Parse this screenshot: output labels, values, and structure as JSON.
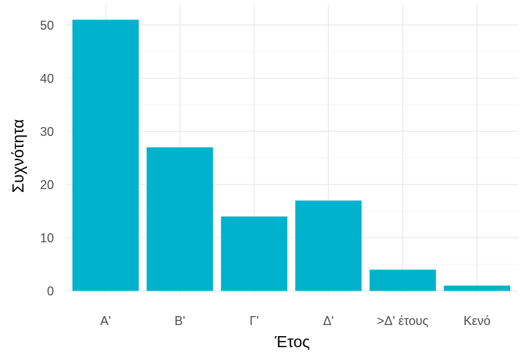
{
  "chart_data": {
    "type": "bar",
    "title": "",
    "xlabel": "Έτος",
    "ylabel": "Συχνότητα",
    "categories": [
      "Α'",
      "Β'",
      "Γ'",
      "Δ'",
      ">Δ' έτους",
      "Κενό"
    ],
    "values": [
      51,
      27,
      14,
      17,
      4,
      1
    ],
    "ylim": [
      0,
      53
    ],
    "yticks": [
      0,
      10,
      20,
      30,
      40,
      50
    ],
    "grid": true,
    "legend": "none",
    "bar_color": "#00b2cc",
    "theme": "minimal"
  }
}
